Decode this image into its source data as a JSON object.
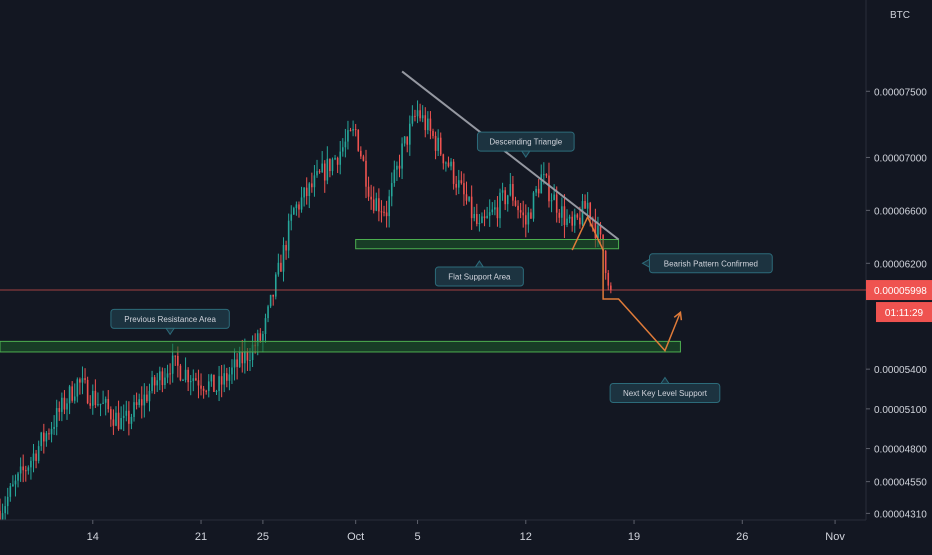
{
  "chart_data": {
    "type": "candlestick",
    "symbol_unit": "BTC",
    "colors": {
      "background": "#131722",
      "up": "#26a69a",
      "down": "#ef5350",
      "zone_fill": "#1e5d2a",
      "zone_stroke": "#4caf50",
      "trendline": "#9598a1",
      "projection": "#e07b39",
      "callout_bg": "#1c3340",
      "callout_border": "#2c6b7a",
      "current_price_line": "#e0524f",
      "current_price_badge": "#ef5350"
    },
    "y_axis": {
      "range": [
        4.26e-05,
        8.19e-05
      ],
      "ticks": [
        "0.00007500",
        "0.00007000",
        "0.00006600",
        "0.00006200",
        "0.00005400",
        "0.00005100",
        "0.00004800",
        "0.00004550",
        "0.00004310"
      ]
    },
    "x_axis": {
      "range": [
        "2020-09-08",
        "2020-11-03"
      ],
      "ticks": [
        {
          "date": "2020-09-14",
          "label": "14"
        },
        {
          "date": "2020-09-21",
          "label": "21"
        },
        {
          "date": "2020-09-25",
          "label": "25"
        },
        {
          "date": "2020-10-01",
          "label": "Oct"
        },
        {
          "date": "2020-10-05",
          "label": "5"
        },
        {
          "date": "2020-10-12",
          "label": "12"
        },
        {
          "date": "2020-10-19",
          "label": "19"
        },
        {
          "date": "2020-10-26",
          "label": "26"
        },
        {
          "date": "2020-11-01",
          "label": "Nov"
        }
      ]
    },
    "current_price": {
      "value": "0.00005998",
      "countdown": "01:11:29"
    },
    "candle_segments": [
      {
        "from": "2020-09-08",
        "to": "2020-09-10",
        "start": 4.33e-05,
        "end": 4.72e-05
      },
      {
        "from": "2020-09-10",
        "to": "2020-09-13",
        "start": 4.72e-05,
        "end": 5.3e-05
      },
      {
        "from": "2020-09-13",
        "to": "2020-09-16",
        "start": 5.3e-05,
        "end": 4.98e-05
      },
      {
        "from": "2020-09-16",
        "to": "2020-09-19",
        "start": 4.98e-05,
        "end": 5.44e-05
      },
      {
        "from": "2020-09-19",
        "to": "2020-09-22",
        "start": 5.44e-05,
        "end": 5.25e-05
      },
      {
        "from": "2020-09-22",
        "to": "2020-09-25",
        "start": 5.25e-05,
        "end": 5.65e-05
      },
      {
        "from": "2020-09-25",
        "to": "2020-09-27",
        "start": 5.65e-05,
        "end": 6.6e-05
      },
      {
        "from": "2020-09-27",
        "to": "2020-09-29",
        "start": 6.6e-05,
        "end": 6.9e-05
      },
      {
        "from": "2020-09-29",
        "to": "2020-10-01",
        "start": 6.9e-05,
        "end": 7.2e-05
      },
      {
        "from": "2020-10-01",
        "to": "2020-10-02",
        "start": 7.2e-05,
        "end": 6.7e-05
      },
      {
        "from": "2020-10-02",
        "to": "2020-10-03",
        "start": 6.7e-05,
        "end": 6.6e-05
      },
      {
        "from": "2020-10-03",
        "to": "2020-10-04",
        "start": 6.6e-05,
        "end": 7.05e-05
      },
      {
        "from": "2020-10-04",
        "to": "2020-10-05",
        "start": 7.05e-05,
        "end": 7.35e-05
      },
      {
        "from": "2020-10-05",
        "to": "2020-10-07",
        "start": 7.35e-05,
        "end": 6.95e-05
      },
      {
        "from": "2020-10-07",
        "to": "2020-10-09",
        "start": 6.95e-05,
        "end": 6.45e-05
      },
      {
        "from": "2020-10-09",
        "to": "2020-10-11",
        "start": 6.45e-05,
        "end": 6.75e-05
      },
      {
        "from": "2020-10-11",
        "to": "2020-10-12",
        "start": 6.75e-05,
        "end": 6.5e-05
      },
      {
        "from": "2020-10-12",
        "to": "2020-10-13",
        "start": 6.5e-05,
        "end": 6.85e-05
      },
      {
        "from": "2020-10-13",
        "to": "2020-10-15",
        "start": 6.85e-05,
        "end": 6.45e-05
      },
      {
        "from": "2020-10-15",
        "to": "2020-10-16",
        "start": 6.45e-05,
        "end": 6.65e-05
      },
      {
        "from": "2020-10-16",
        "to": "2020-10-17",
        "start": 6.65e-05,
        "end": 6.3e-05
      },
      {
        "from": "2020-10-17",
        "to": "2020-10-17",
        "start": 6.3e-05,
        "end": 5.998e-05
      }
    ],
    "annotations": [
      {
        "kind": "zone",
        "name": "previous-resistance-zone",
        "from": "2020-09-08",
        "to": "2020-10-22",
        "y_low": 5.53e-05,
        "y_high": 5.61e-05
      },
      {
        "kind": "zone",
        "name": "flat-support-zone",
        "from": "2020-10-01",
        "to": "2020-10-18",
        "y_low": 6.31e-05,
        "y_high": 6.38e-05
      },
      {
        "kind": "trendline",
        "name": "descending-trendline",
        "x1": "2020-10-04",
        "y1": 7.65e-05,
        "x2": "2020-10-18",
        "y2": 6.38e-05
      },
      {
        "kind": "polyline",
        "name": "bearish-wave-line",
        "points": [
          [
            "2020-10-15",
            6.3e-05
          ],
          [
            "2020-10-16",
            6.55e-05
          ],
          [
            "2020-10-17",
            6.3e-05
          ],
          [
            "2020-10-17",
            5.93e-05
          ],
          [
            "2020-10-18",
            5.93e-05
          ],
          [
            "2020-10-21",
            5.54e-05
          ],
          [
            "2020-10-22",
            5.83e-05
          ]
        ]
      },
      {
        "kind": "callout",
        "name": "callout-previous-resistance",
        "text": "Previous Resistance Area",
        "date": "2020-09-19",
        "price": 5.78e-05,
        "pointer": "down"
      },
      {
        "kind": "callout",
        "name": "callout-descending-triangle",
        "text": "Descending Triangle",
        "date": "2020-10-12",
        "price": 7.12e-05,
        "pointer": "down"
      },
      {
        "kind": "callout",
        "name": "callout-flat-support",
        "text": "Flat Support Area",
        "date": "2020-10-09",
        "price": 6.1e-05,
        "pointer": "up"
      },
      {
        "kind": "callout",
        "name": "callout-bearish-confirmed",
        "text": "Bearish Pattern Confirmed",
        "date": "2020-10-20",
        "price": 6.2e-05,
        "pointer": "left"
      },
      {
        "kind": "callout",
        "name": "callout-next-support",
        "text": "Next Key Level Support",
        "date": "2020-10-21",
        "price": 5.22e-05,
        "pointer": "up"
      }
    ]
  }
}
